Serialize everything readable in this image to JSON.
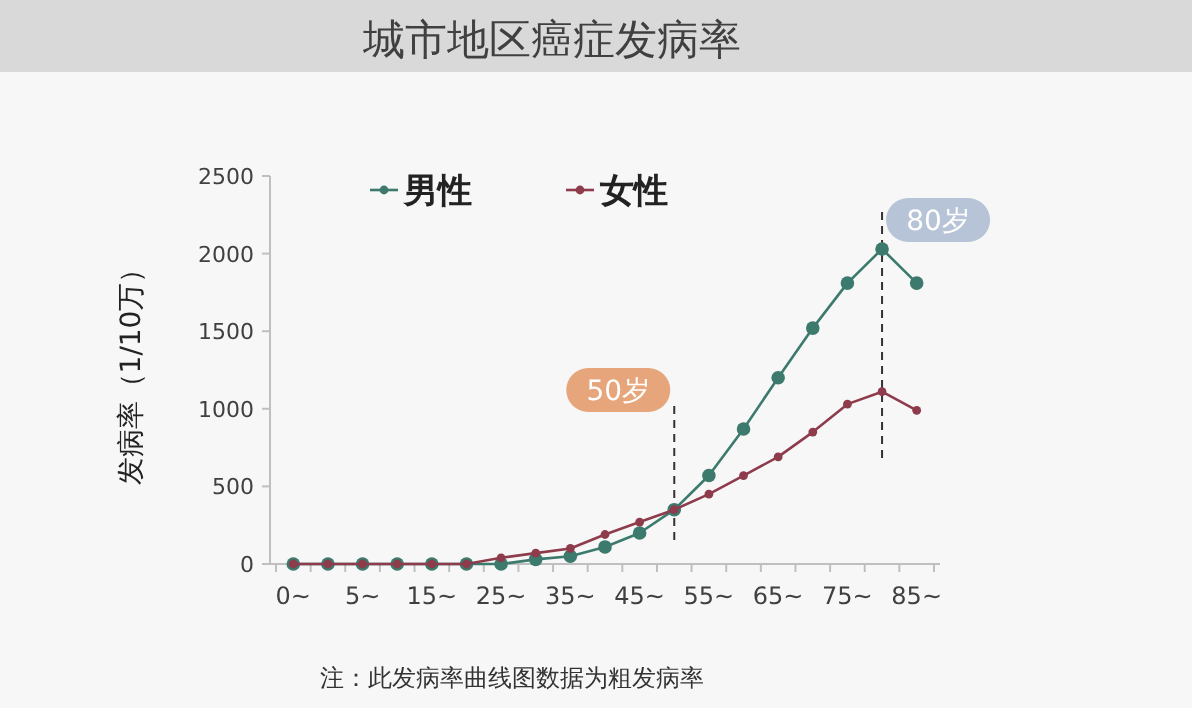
{
  "chart_data": {
    "type": "line",
    "title": "城市地区癌症发病率",
    "ylabel": "发病率（1/10万）",
    "categories": [
      "0~",
      null,
      "5~",
      null,
      "15~",
      null,
      "25~",
      null,
      "35~",
      null,
      "45~",
      null,
      "55~",
      null,
      "65~",
      null,
      "75~",
      null,
      "85~"
    ],
    "series": [
      {
        "name": "男性",
        "color": "#3b7a6c",
        "values": [
          0,
          0,
          0,
          0,
          0,
          0,
          0,
          30,
          50,
          110,
          200,
          350,
          570,
          870,
          1200,
          1520,
          1810,
          2030,
          1810
        ]
      },
      {
        "name": "女性",
        "color": "#8e3b4c",
        "values": [
          0,
          0,
          0,
          0,
          0,
          0,
          40,
          70,
          100,
          190,
          270,
          350,
          450,
          570,
          690,
          850,
          1030,
          1110,
          990
        ]
      }
    ],
    "ylim": [
      0,
      2500
    ],
    "yticks": [
      0,
      500,
      1000,
      1500,
      2000,
      2500
    ],
    "annotations": [
      "注：此发病率曲线图数据为粗发病率",
      "50岁",
      "80岁"
    ],
    "legend": "top",
    "marker": "circle",
    "line_style": "solid",
    "grid": false
  }
}
